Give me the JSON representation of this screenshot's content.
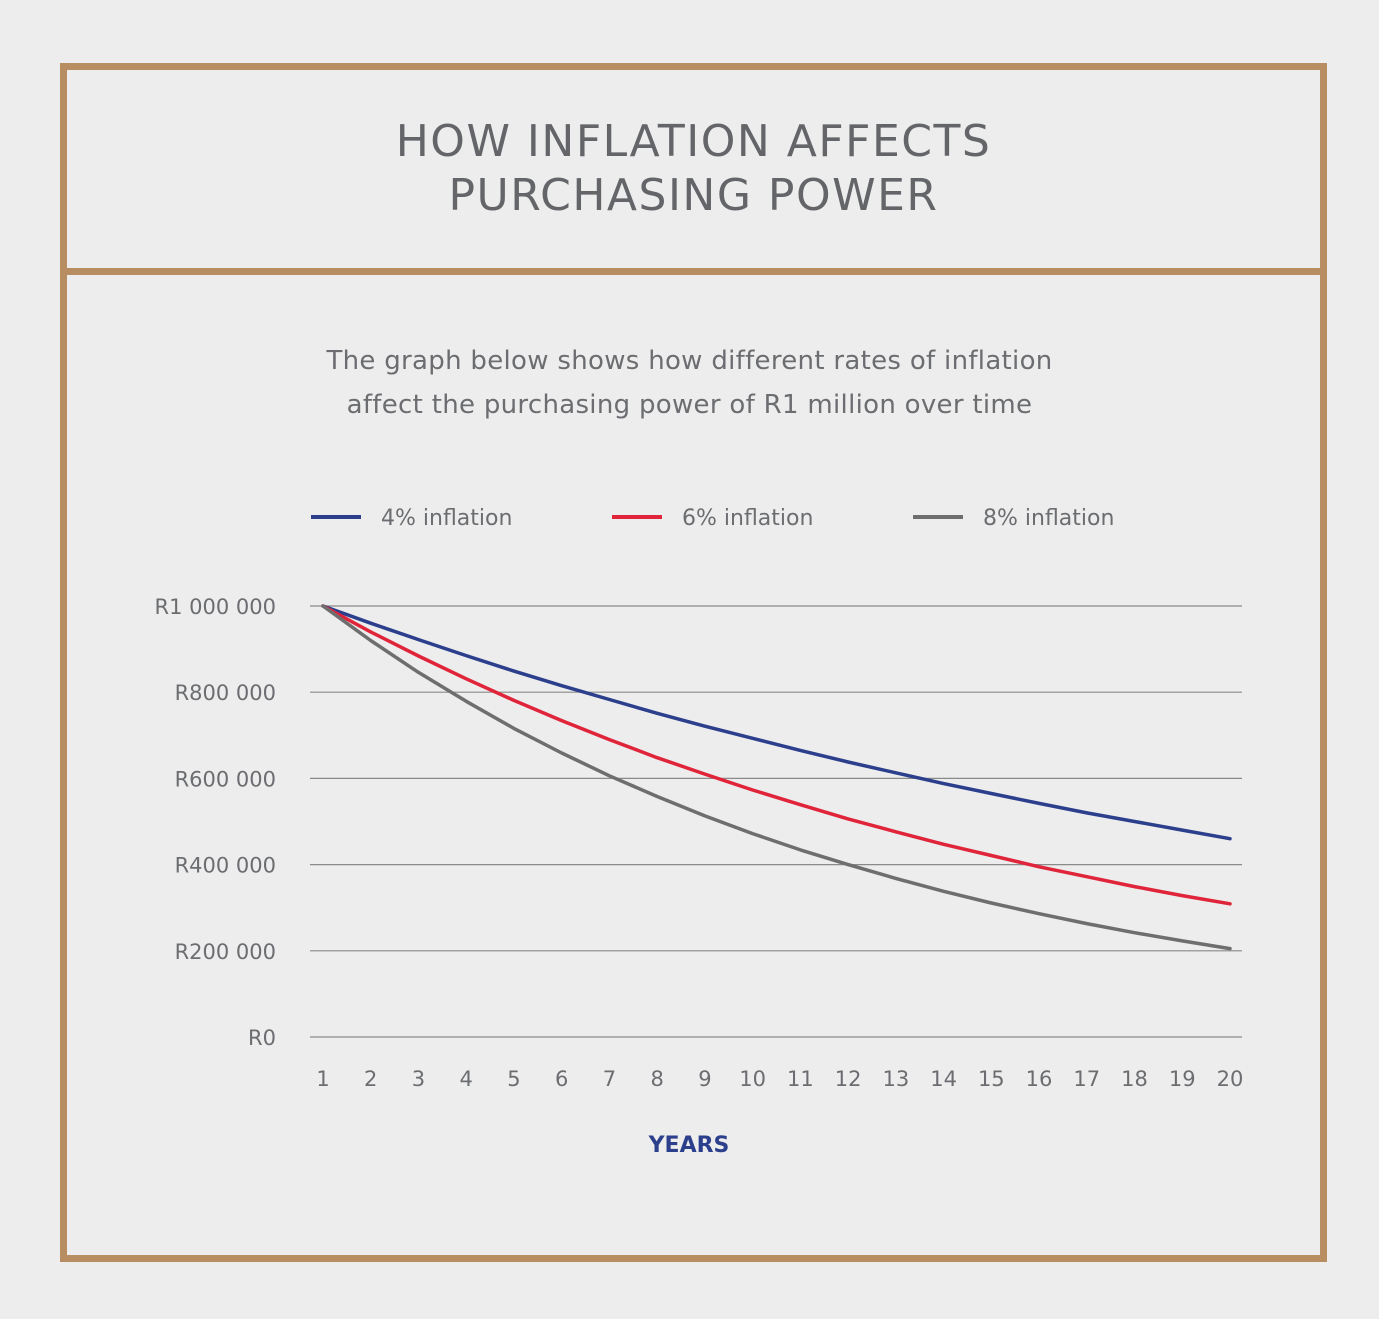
{
  "header": {
    "title_line1": "HOW INFLATION AFFECTS",
    "title_line2": "PURCHASING POWER"
  },
  "subtitle": {
    "line1": "The graph below shows how different rates of inflation",
    "line2": "affect the purchasing power of R1 million over time"
  },
  "colors": {
    "frame": "#b88d61",
    "background": "#ededed",
    "grid": "#8a8a8a",
    "text": "#6b6d70",
    "axis_title": "#2b3f8c"
  },
  "chart_data": {
    "type": "line",
    "title": "",
    "xlabel": "YEARS",
    "ylabel": "",
    "x": [
      1,
      2,
      3,
      4,
      5,
      6,
      7,
      8,
      9,
      10,
      11,
      12,
      13,
      14,
      15,
      16,
      17,
      18,
      19,
      20
    ],
    "ylim": [
      0,
      1000000
    ],
    "yticks": [
      0,
      200000,
      400000,
      600000,
      800000,
      1000000
    ],
    "ytick_labels": [
      "R0",
      "R200 000",
      "R400 000",
      "R600 000",
      "R800 000",
      "R1 000 000"
    ],
    "grid": true,
    "legend_position": "top",
    "series": [
      {
        "name": "4% inflation",
        "color": "#2b3f8c",
        "values": [
          1000000,
          960000,
          922000,
          885000,
          849000,
          815000,
          783000,
          751000,
          721000,
          693000,
          665000,
          638000,
          613000,
          588000,
          565000,
          542000,
          520000,
          500000,
          480000,
          460000
        ]
      },
      {
        "name": "6% inflation",
        "color": "#e0243a",
        "values": [
          1000000,
          940000,
          884000,
          831000,
          781000,
          734000,
          690000,
          648000,
          610000,
          573000,
          539000,
          506000,
          476000,
          447000,
          421000,
          395000,
          372000,
          349000,
          328000,
          309000
        ]
      },
      {
        "name": "8% inflation",
        "color": "#6e6e6e",
        "values": [
          1000000,
          920000,
          846000,
          779000,
          716000,
          659000,
          606000,
          558000,
          513000,
          472000,
          434000,
          400000,
          368000,
          338000,
          311000,
          286000,
          263000,
          242000,
          223000,
          205000
        ]
      }
    ]
  }
}
